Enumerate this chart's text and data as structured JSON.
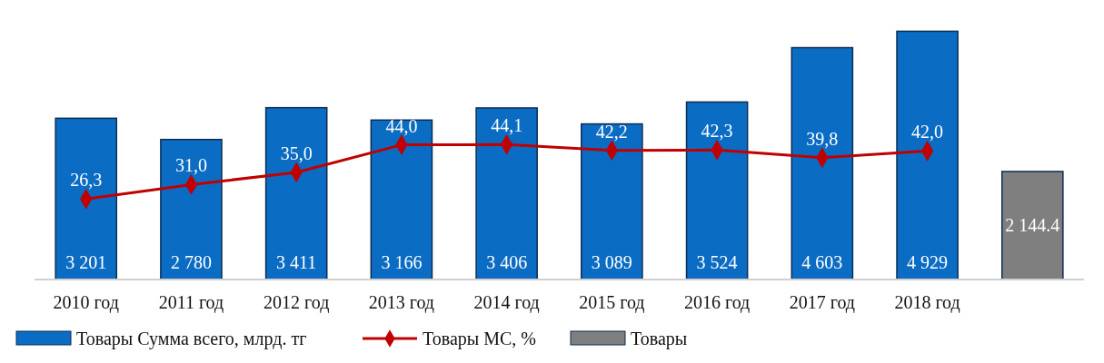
{
  "chart_data": {
    "type": "bar",
    "categories": [
      "2010 год",
      "2011 год",
      "2012 год",
      "2013 год",
      "2014 год",
      "2015 год",
      "2016 год",
      "2017 год",
      "2018 год",
      null
    ],
    "series": [
      {
        "name": "Товары Сумма всего, млрд. тг",
        "color": "#0b6cc4",
        "values": [
          3201,
          2780,
          3411,
          3166,
          3406,
          3089,
          3524,
          4603,
          4929,
          null
        ],
        "value_labels": [
          "3 201",
          "2 780",
          "3 411",
          "3 166",
          "3 406",
          "3 089",
          "3 524",
          "4 603",
          "4 929",
          null
        ]
      },
      {
        "name": "Товары МС, %",
        "type": "line",
        "axis": "y2",
        "color": "#c00000",
        "marker": "diamond",
        "values": [
          26.3,
          31.0,
          35.0,
          44.0,
          44.1,
          42.2,
          42.3,
          39.8,
          42.0,
          null
        ],
        "value_labels": [
          "26,3",
          "31,0",
          "35,0",
          "44,0",
          "44,1",
          "42,2",
          "42,3",
          "39,8",
          "42,0",
          null
        ]
      },
      {
        "name": "Товары",
        "color": "#7f7f7f",
        "values": [
          null,
          null,
          null,
          null,
          null,
          null,
          null,
          null,
          null,
          2144.4
        ],
        "value_labels": [
          null,
          null,
          null,
          null,
          null,
          null,
          null,
          null,
          null,
          "2 144.4"
        ]
      }
    ],
    "tick_labels": "x",
    "legend": "bottom"
  }
}
